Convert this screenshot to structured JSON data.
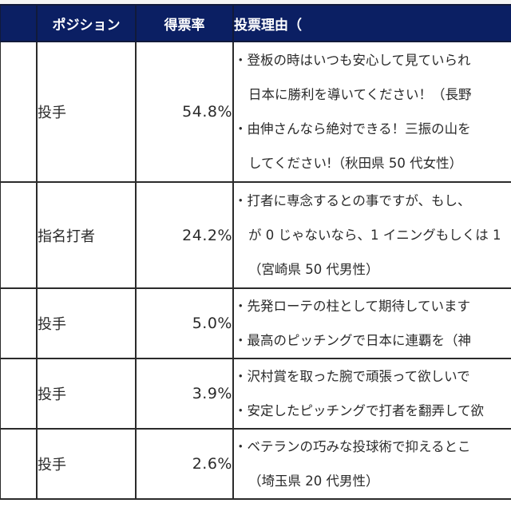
{
  "table": {
    "headers": {
      "rank": "",
      "position": "ポジション",
      "vote_rate": "得票率",
      "reason": "投票理由（"
    },
    "rows": [
      {
        "rank": "",
        "position": "投手",
        "vote_rate": "54.8%",
        "reason_lines": [
          {
            "text": "・登板の時はいつも安心して見ていられ",
            "indent": false
          },
          {
            "text": "日本に勝利を導いてください！（長野",
            "indent": true
          },
          {
            "text": "・由伸さんなら絶対できる！三振の山を",
            "indent": false
          },
          {
            "text": "してください!（秋田県 50 代女性）",
            "indent": true
          }
        ]
      },
      {
        "rank": "",
        "position": "指名打者",
        "vote_rate": "24.2%",
        "reason_lines": [
          {
            "text": "・打者に専念するとの事ですが、もし、",
            "indent": false
          },
          {
            "text": "が 0 じゃないなら、1 イニングもしくは 1",
            "indent": true
          },
          {
            "text": "（宮崎県 50 代男性）",
            "indent": true
          }
        ]
      },
      {
        "rank": "",
        "position": "投手",
        "vote_rate": "5.0%",
        "reason_lines": [
          {
            "text": "・先発ローテの柱として期待しています",
            "indent": false
          },
          {
            "text": "・最高のピッチングで日本に連覇を（神",
            "indent": false
          }
        ]
      },
      {
        "rank": "",
        "position": "投手",
        "vote_rate": "3.9%",
        "reason_lines": [
          {
            "text": "・沢村賞を取った腕で頑張って欲しいで",
            "indent": false
          },
          {
            "text": "・安定したピッチングで打者を翻弄して欲",
            "indent": false
          }
        ]
      },
      {
        "rank": "",
        "position": "投手",
        "vote_rate": "2.6%",
        "reason_lines": [
          {
            "text": "・ベテランの巧みな投球術で抑えるとこ",
            "indent": false
          },
          {
            "text": "（埼玉県 20 代男性）",
            "indent": true
          }
        ]
      }
    ]
  },
  "colors": {
    "header_bg": "#0b1f63",
    "header_text": "#ffffff",
    "border": "#2b2b2b",
    "body_text": "#2a2a2a"
  }
}
